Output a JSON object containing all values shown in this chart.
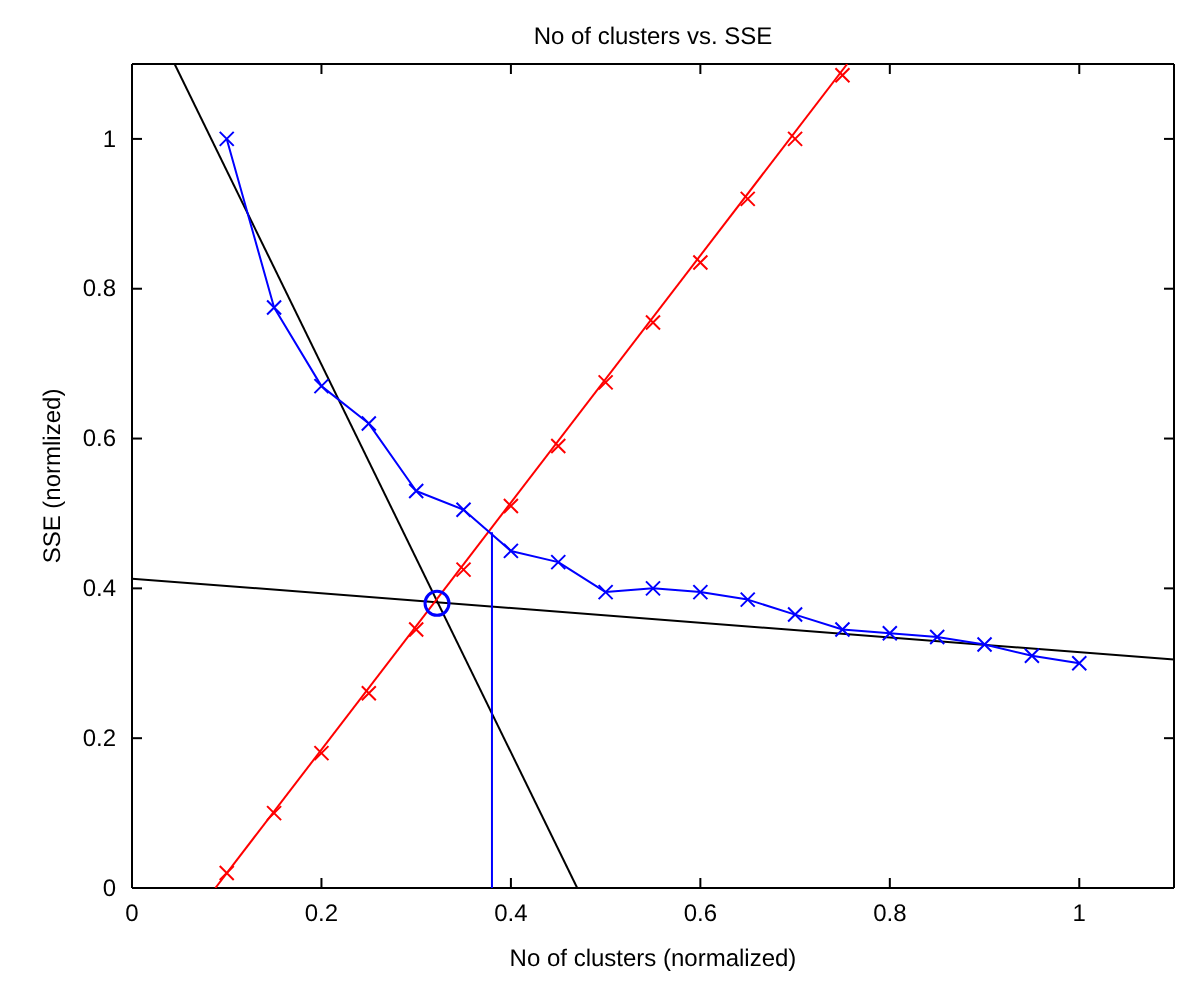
{
  "chart_data": {
    "type": "line",
    "title": "No of clusters vs. SSE",
    "xlabel": "No of clusters (normalized)",
    "ylabel": "SSE (normlized)",
    "xlim": [
      0,
      1.1
    ],
    "ylim": [
      0,
      1.1
    ],
    "xticks": [
      0,
      0.2,
      0.4,
      0.6,
      0.8,
      1
    ],
    "yticks": [
      0,
      0.2,
      0.4,
      0.6,
      0.8,
      1
    ],
    "grid": false,
    "marker": "cross",
    "line_style": "solid",
    "series": [
      {
        "color": "#000000",
        "marker": "none",
        "x": [
          0.045,
          0.47
        ],
        "values": [
          1.1,
          0
        ]
      },
      {
        "color": "#000000",
        "marker": "none",
        "x": [
          0,
          1.1
        ],
        "values": [
          0.413,
          0.305
        ]
      },
      {
        "color": "#ff0000",
        "marker": "none",
        "x": [
          0.088,
          0.755
        ],
        "values": [
          0,
          1.1
        ]
      },
      {
        "color": "#0000ff",
        "marker": "none",
        "x": [
          0.38,
          0.38
        ],
        "values": [
          0,
          0.475
        ]
      },
      {
        "color": "#0000ff",
        "x": [
          0.1,
          0.15,
          0.2,
          0.25,
          0.3,
          0.35,
          0.4,
          0.45,
          0.5,
          0.55,
          0.6,
          0.65,
          0.7,
          0.75,
          0.8,
          0.85,
          0.9,
          0.95,
          1
        ],
        "values": [
          1,
          0.775,
          0.67,
          0.62,
          0.53,
          0.505,
          0.45,
          0.435,
          0.395,
          0.4,
          0.395,
          0.385,
          0.365,
          0.345,
          0.34,
          0.335,
          0.325,
          0.31,
          0.3
        ]
      },
      {
        "color": "#ff0000",
        "type": "scatter",
        "x": [
          0.1,
          0.15,
          0.2,
          0.25,
          0.3,
          0.35,
          0.4,
          0.45,
          0.5,
          0.55,
          0.6,
          0.65,
          0.7,
          0.75
        ],
        "values": [
          0.02,
          0.1,
          0.18,
          0.26,
          0.345,
          0.425,
          0.51,
          0.59,
          0.675,
          0.755,
          0.835,
          0.92,
          1,
          1.085
        ]
      },
      {
        "color": "#0000ff",
        "type": "scatter",
        "marker": "circle",
        "x": [
          0.322
        ],
        "values": [
          0.38
        ]
      }
    ]
  }
}
